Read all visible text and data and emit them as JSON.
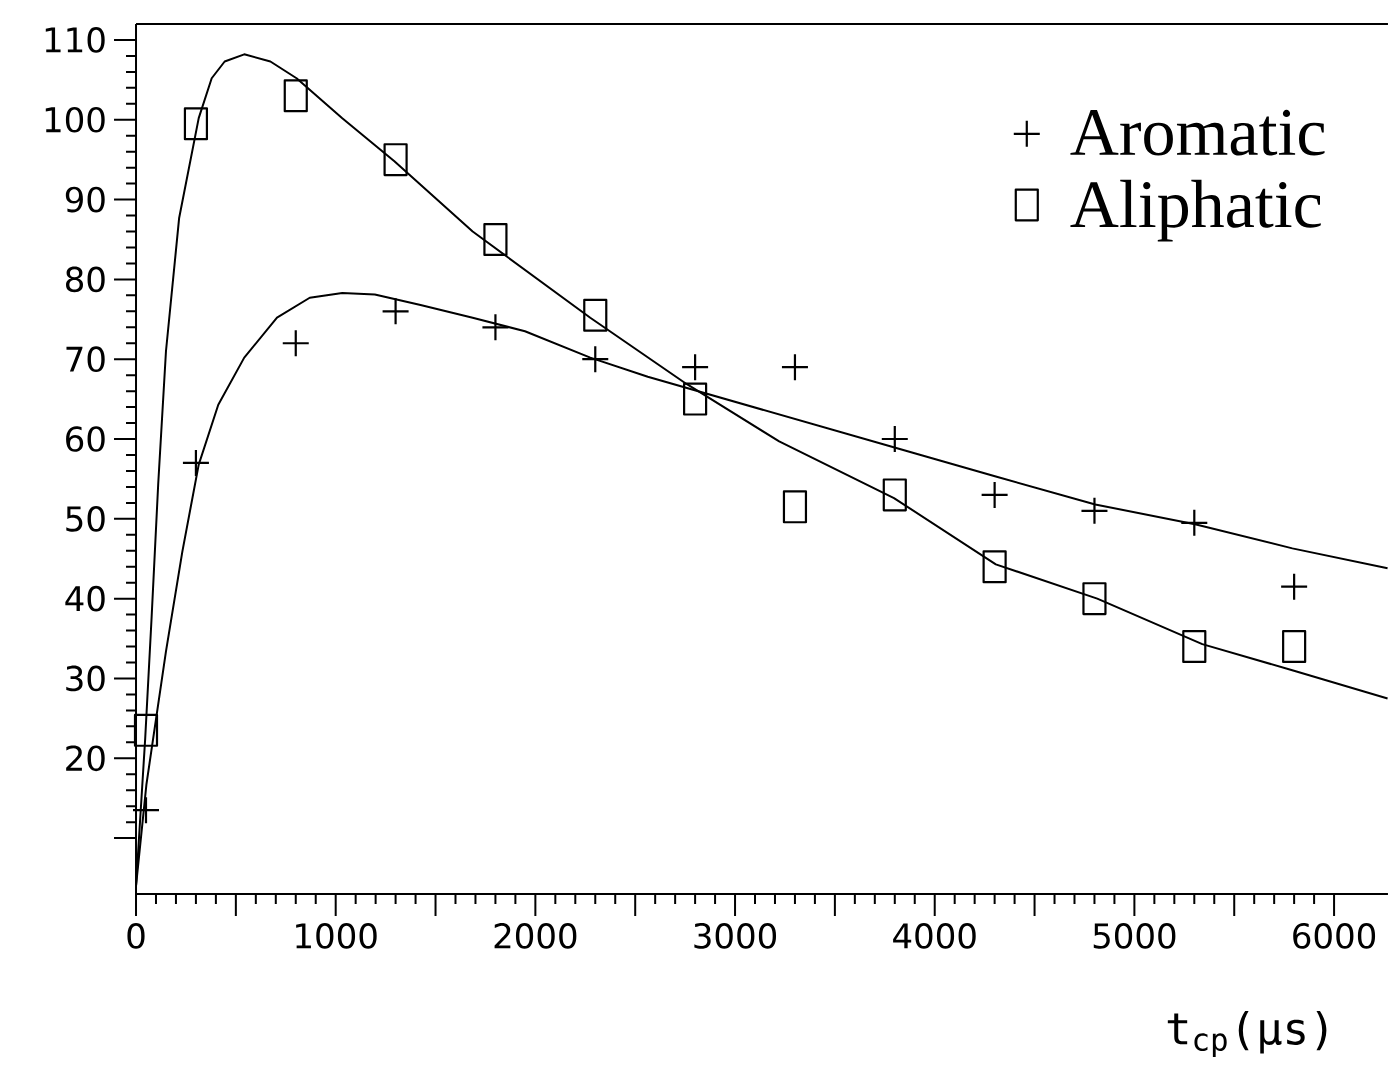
{
  "chart_data": {
    "type": "scatter",
    "xlabel": "t$_{cp}$(μs)",
    "xlim": [
      0,
      6270
    ],
    "ylim": [
      3,
      112
    ],
    "xticks": [
      0,
      {
        "value": 500,
        "label": null
      },
      1000,
      {
        "value": 1500,
        "label": null
      },
      2000,
      {
        "value": 2500,
        "label": null
      },
      3000,
      {
        "value": 3500,
        "label": null
      },
      4000,
      {
        "value": 4500,
        "label": null
      },
      5000,
      {
        "value": 5500,
        "label": null
      },
      6000
    ],
    "yticks": [
      {
        "value": 10,
        "label": null
      },
      20,
      30,
      40,
      50,
      60,
      70,
      80,
      90,
      100,
      110
    ],
    "legend": "top right",
    "series": [
      {
        "name": "Aromatic",
        "marker": "cross",
        "color": "#000000",
        "x": [
          50,
          300,
          800,
          1300,
          1800,
          2300,
          2800,
          3300,
          3800,
          4300,
          4800,
          5300,
          5800
        ],
        "values": [
          13.5,
          57,
          72,
          76,
          74,
          70,
          69,
          69,
          60,
          53,
          51,
          49.5,
          41.5
        ]
      },
      {
        "name": "Aliphatic",
        "marker": "square",
        "color": "#000000",
        "x": [
          50,
          300,
          800,
          1300,
          1800,
          2300,
          2800,
          3300,
          3800,
          4300,
          4800,
          5300,
          5800
        ],
        "values": [
          23.5,
          99.5,
          103,
          95,
          85,
          75.5,
          65,
          51.5,
          53,
          44,
          40,
          34,
          34
        ]
      },
      {
        "type": "line",
        "color": "#000000",
        "x": [
          0,
          52,
          150,
          232,
          314,
          412,
          542,
          706,
          870,
          1033,
          1196,
          1425,
          1686,
          1948,
          2275,
          2563,
          3803,
          4306,
          4804,
          5309,
          5791,
          6268
        ],
        "values": [
          4,
          16.7,
          33.4,
          45.9,
          56.8,
          64.3,
          70.2,
          75.2,
          77.7,
          78.3,
          78.1,
          76.8,
          75.2,
          73.5,
          70.2,
          67.8,
          58.9,
          55.3,
          51.8,
          49.3,
          46.3,
          43.8
        ]
      },
      {
        "type": "line",
        "color": "#000000",
        "x": [
          0,
          46,
          78,
          111,
          150,
          216,
          314,
          379,
          444,
          542,
          673,
          804,
          1033,
          1294,
          1686,
          2275,
          2757,
          3221,
          3796,
          4306,
          4814,
          5340,
          5795,
          6268
        ],
        "values": [
          4,
          22.5,
          37.6,
          54.3,
          71,
          87.7,
          100.2,
          105.2,
          107.3,
          108.2,
          107.3,
          105.2,
          100.2,
          94.8,
          86,
          75.2,
          66.9,
          59.7,
          52.6,
          44.3,
          40,
          34.3,
          31,
          27.5
        ]
      }
    ]
  }
}
